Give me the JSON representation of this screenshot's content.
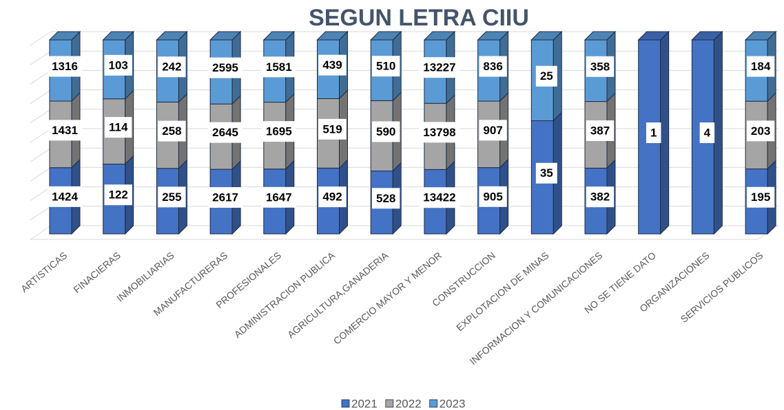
{
  "chart_data": {
    "type": "stacked100_bar3d",
    "title": "SEGUN LETRA CIIU",
    "categories": [
      "ARTISTICAS",
      "FINACIERAS",
      "INMOBILIARIAS",
      "MANUFACTURERAS",
      "PROFESIONALES",
      "ADMINISTRACION PUBLICA",
      "AGRICULTURA,GANADERIA",
      "COMERCIO MAYOR Y MENOR",
      "CONSTRUCCION",
      "EXPLOTACION DE MINAS",
      "INFORMACION Y COMUNICACIONES",
      "NO SE TIENE DATO",
      "ORGANIZACIONES",
      "SERVICIOS PUBLICOS"
    ],
    "series": [
      {
        "name": "2021",
        "color": "#4472c4",
        "values": [
          1424,
          122,
          255,
          2617,
          1647,
          492,
          528,
          13422,
          905,
          35,
          382,
          1,
          4,
          195
        ]
      },
      {
        "name": "2022",
        "color": "#a5a5a5",
        "values": [
          1431,
          114,
          258,
          2645,
          1695,
          519,
          590,
          13798,
          907,
          null,
          387,
          null,
          null,
          203
        ]
      },
      {
        "name": "2023",
        "color": "#5b9bd5",
        "values": [
          1316,
          103,
          242,
          2595,
          1581,
          439,
          510,
          13227,
          836,
          25,
          358,
          null,
          null,
          184
        ]
      }
    ],
    "legend": "bottom"
  }
}
